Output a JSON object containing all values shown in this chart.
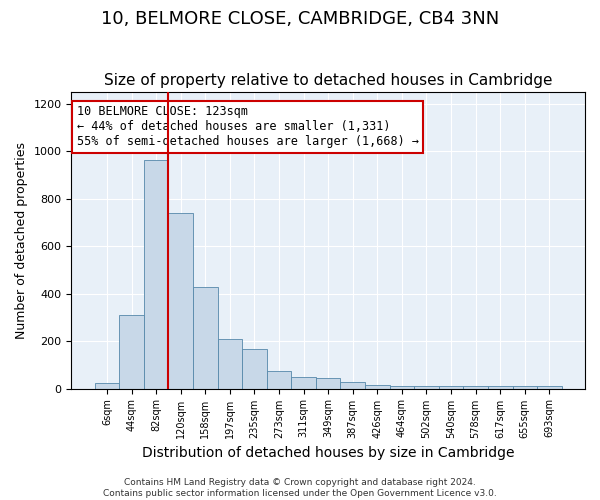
{
  "title": "10, BELMORE CLOSE, CAMBRIDGE, CB4 3NN",
  "subtitle": "Size of property relative to detached houses in Cambridge",
  "xlabel": "Distribution of detached houses by size in Cambridge",
  "ylabel": "Number of detached properties",
  "bar_values": [
    25,
    310,
    965,
    740,
    430,
    207,
    165,
    75,
    50,
    45,
    28,
    15,
    10,
    10,
    10,
    10,
    10,
    10,
    10
  ],
  "bin_labels": [
    "6sqm",
    "44sqm",
    "82sqm",
    "120sqm",
    "158sqm",
    "197sqm",
    "235sqm",
    "273sqm",
    "311sqm",
    "349sqm",
    "387sqm",
    "426sqm",
    "464sqm",
    "502sqm",
    "540sqm",
    "578sqm",
    "617sqm",
    "655sqm",
    "693sqm"
  ],
  "bar_color": "#c8d8e8",
  "bar_edge_color": "#5588aa",
  "vline_color": "#cc0000",
  "vline_x": 2.5,
  "annotation_text": "10 BELMORE CLOSE: 123sqm\n← 44% of detached houses are smaller (1,331)\n55% of semi-detached houses are larger (1,668) →",
  "annotation_box_facecolor": "#ffffff",
  "annotation_border_color": "#cc0000",
  "ylim": [
    0,
    1250
  ],
  "yticks": [
    0,
    200,
    400,
    600,
    800,
    1000,
    1200
  ],
  "background_color": "#e8f0f8",
  "footer_text": "Contains HM Land Registry data © Crown copyright and database right 2024.\nContains public sector information licensed under the Open Government Licence v3.0.",
  "title_fontsize": 13,
  "subtitle_fontsize": 11,
  "xlabel_fontsize": 10,
  "ylabel_fontsize": 9,
  "annotation_fontsize": 8.5,
  "tick_fontsize": 7,
  "ytick_fontsize": 8,
  "footer_fontsize": 6.5
}
